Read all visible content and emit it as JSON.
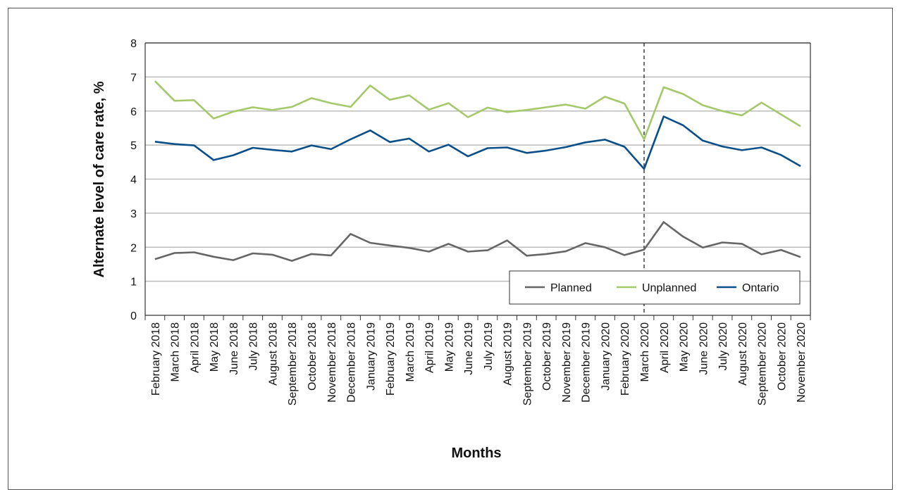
{
  "chart_data": {
    "type": "line",
    "title": "",
    "xlabel": "Months",
    "ylabel": "Alternate level of care rate, %",
    "ylim": [
      0,
      8
    ],
    "yticks": [
      0,
      1,
      2,
      3,
      4,
      5,
      6,
      7,
      8
    ],
    "grid": "horizontal",
    "legend_position": "bottom-right",
    "marker": {
      "at": "March 2020",
      "style": "dashed"
    },
    "categories": [
      "February 2018",
      "March 2018",
      "April 2018",
      "May 2018",
      "June 2018",
      "July 2018",
      "August 2018",
      "September 2018",
      "October 2018",
      "November 2018",
      "December 2018",
      "January 2019",
      "February 2019",
      "March 2019",
      "April 2019",
      "May 2019",
      "June 2019",
      "July 2019",
      "August 2019",
      "September 2019",
      "October 2019",
      "November 2019",
      "December 2019",
      "January 2020",
      "February 2020",
      "March 2020",
      "April 2020",
      "May 2020",
      "June 2020",
      "July 2020",
      "August 2020",
      "September 2020",
      "October 2020",
      "November 2020"
    ],
    "series": [
      {
        "name": "Planned",
        "color": "#666666",
        "values": [
          1.65,
          1.83,
          1.85,
          1.72,
          1.62,
          1.82,
          1.78,
          1.6,
          1.8,
          1.76,
          2.39,
          2.13,
          2.05,
          1.98,
          1.87,
          2.1,
          1.87,
          1.91,
          2.2,
          1.75,
          1.8,
          1.88,
          2.12,
          2.0,
          1.77,
          1.93,
          2.74,
          2.31,
          1.99,
          2.14,
          2.1,
          1.79,
          1.92,
          1.71
        ]
      },
      {
        "name": "Unplanned",
        "color": "#a3c96b",
        "values": [
          6.88,
          6.3,
          6.32,
          5.78,
          5.98,
          6.11,
          6.03,
          6.12,
          6.38,
          6.23,
          6.12,
          6.75,
          6.33,
          6.46,
          6.04,
          6.23,
          5.82,
          6.1,
          5.97,
          6.03,
          6.11,
          6.19,
          6.07,
          6.42,
          6.22,
          5.17,
          6.7,
          6.5,
          6.17,
          6.0,
          5.87,
          6.25,
          5.9,
          5.55
        ]
      },
      {
        "name": "Ontario",
        "color": "#0a4f8a",
        "values": [
          5.1,
          5.03,
          4.99,
          4.56,
          4.7,
          4.92,
          4.86,
          4.81,
          4.99,
          4.88,
          5.17,
          5.43,
          5.09,
          5.19,
          4.81,
          5.01,
          4.67,
          4.91,
          4.93,
          4.77,
          4.84,
          4.94,
          5.08,
          5.16,
          4.95,
          4.3,
          5.84,
          5.58,
          5.13,
          4.96,
          4.85,
          4.93,
          4.71,
          4.38
        ]
      }
    ]
  }
}
